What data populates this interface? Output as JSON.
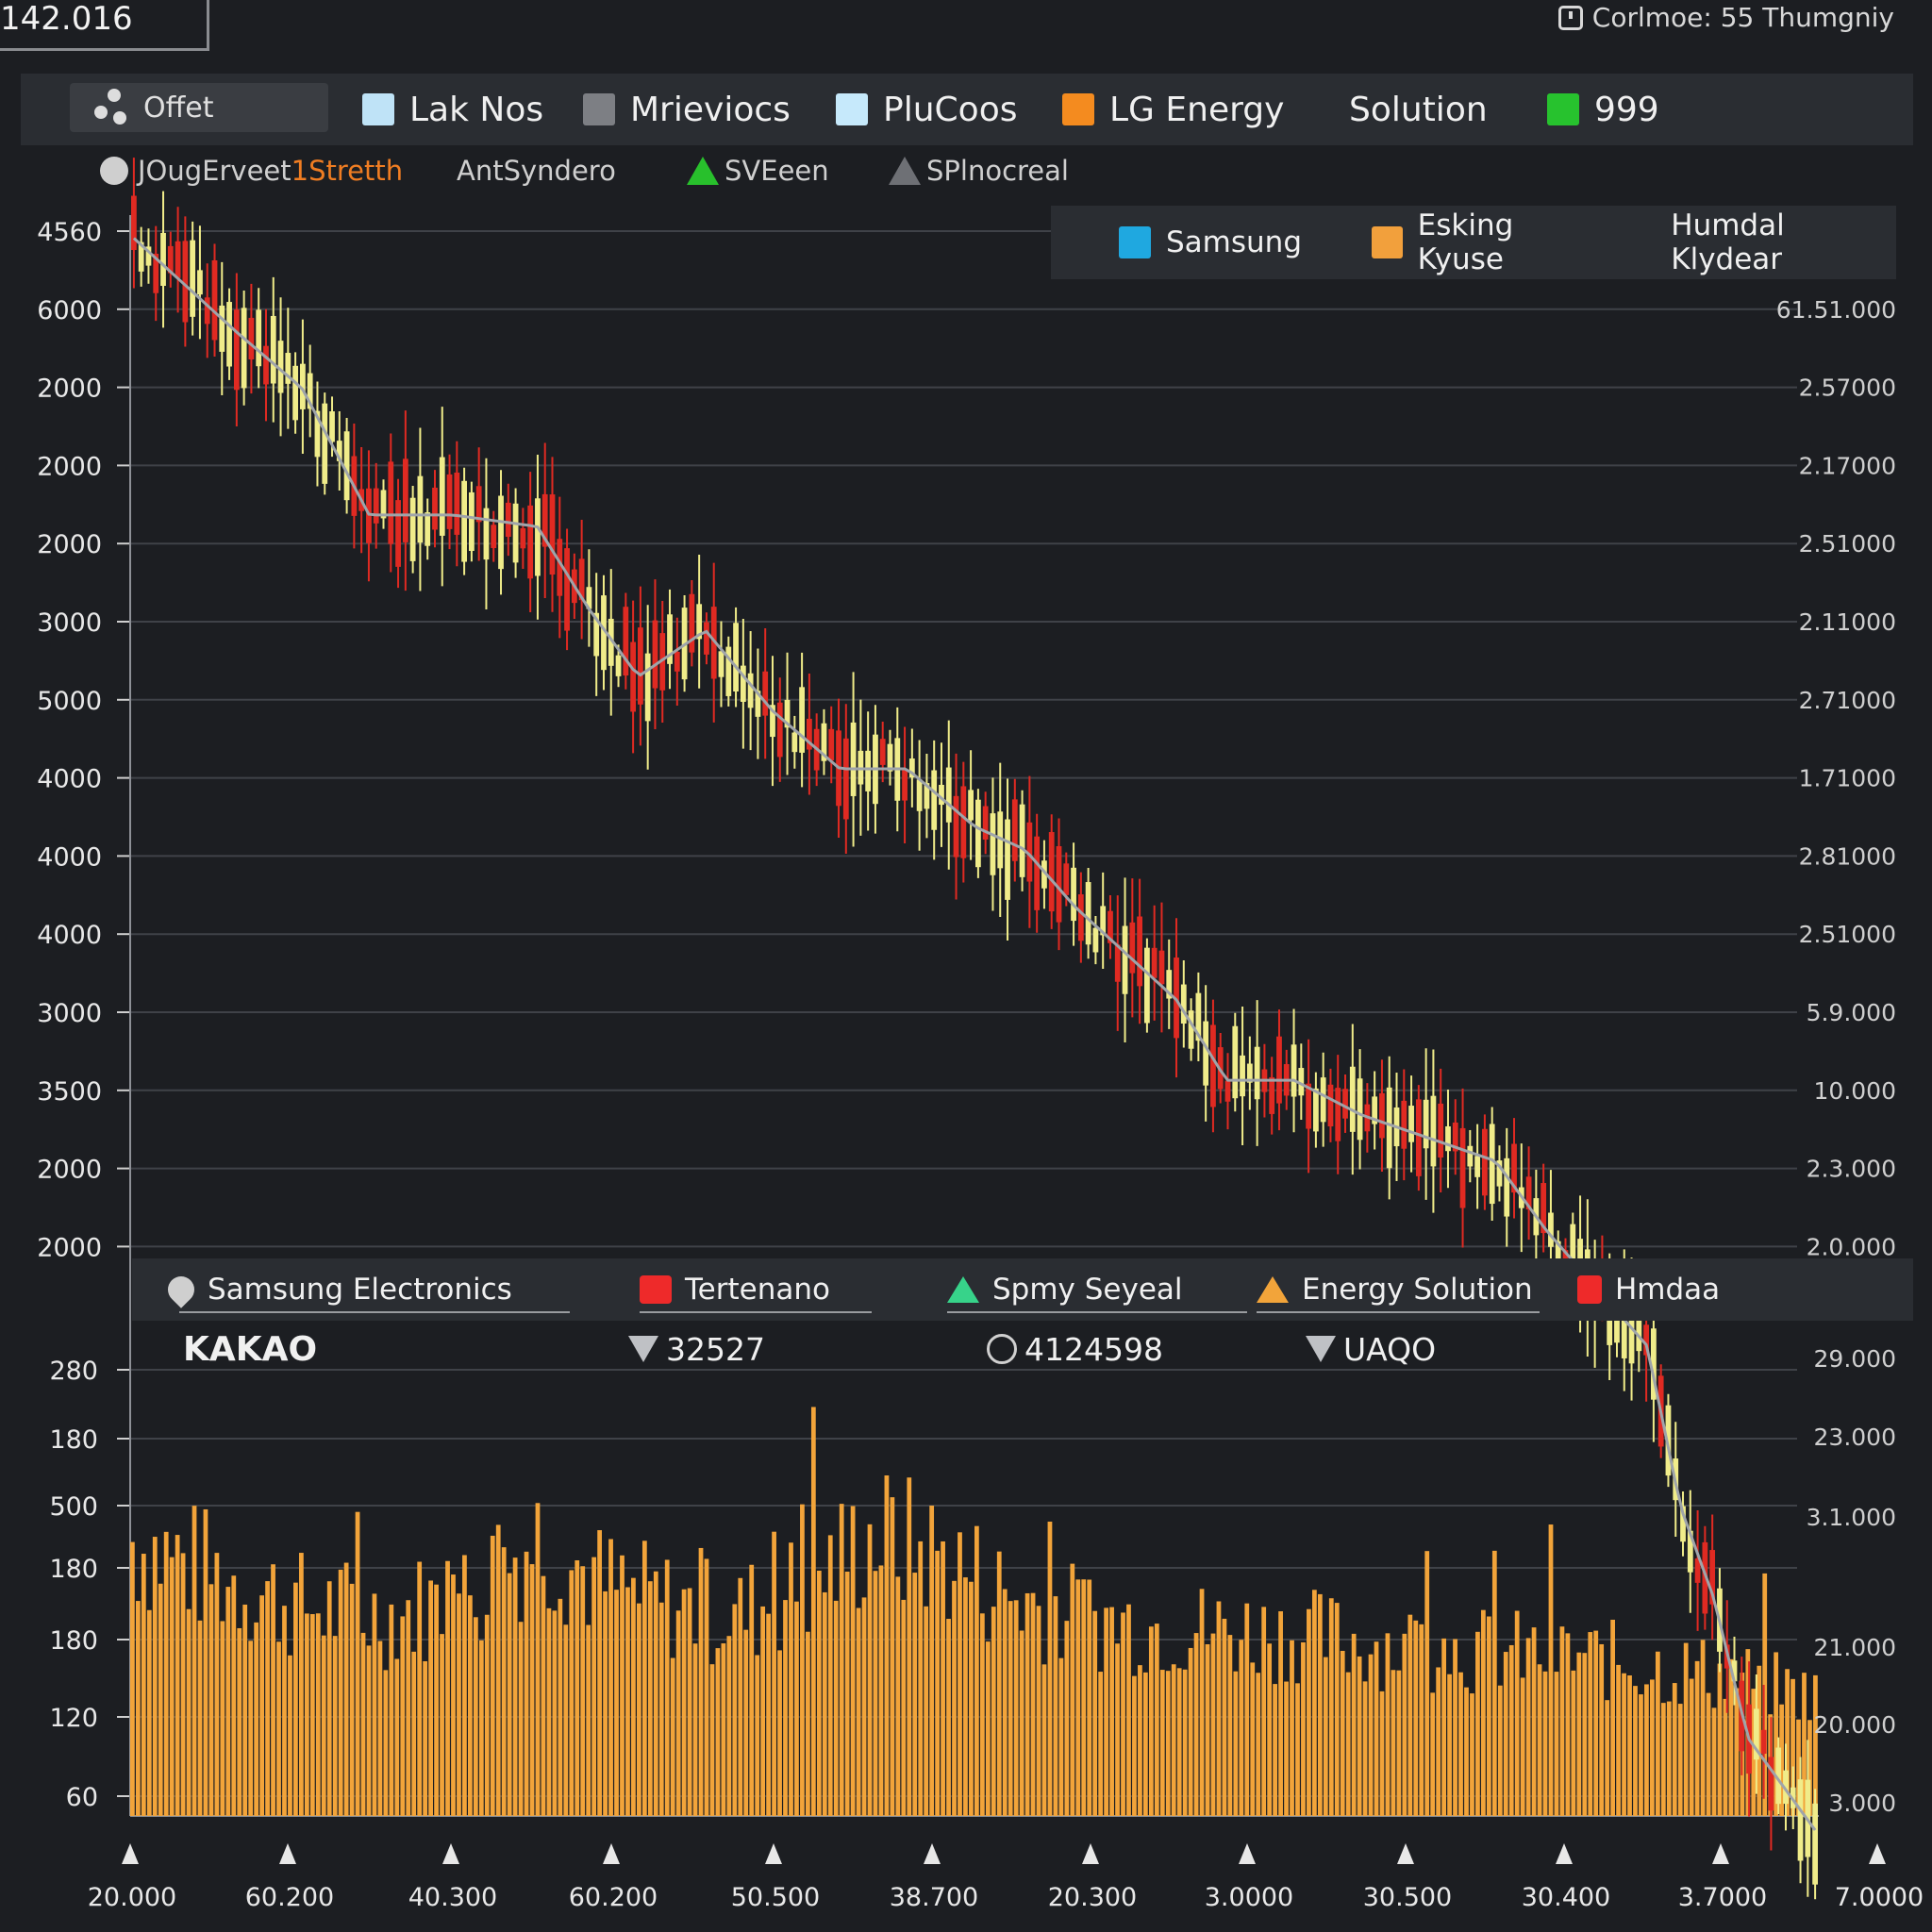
{
  "header": {
    "corner_value": "142.016",
    "right_text": "Corlmoe: 55 Thumgniy"
  },
  "legend": {
    "offset_label": "Offet",
    "items": [
      {
        "label": "Lak Nos",
        "color": "#bfe3f7"
      },
      {
        "label": "Mrieviocs",
        "color": "#7d7f84"
      },
      {
        "label": "PluCoos",
        "color": "#c6e9fb"
      },
      {
        "label": "LG Energy",
        "color": "#f48b1f"
      },
      {
        "label": "Solution",
        "color": ""
      },
      {
        "label": "999",
        "color": "#27c22e"
      }
    ]
  },
  "sub_legend": {
    "item1_a": "JOugErveet",
    "item1_b": "1Stretth",
    "item2": "AntSyndero",
    "item3": "SVEeen",
    "item4": "SPlnocreal"
  },
  "right_legend": {
    "items": [
      {
        "label": "Samsung",
        "color": "#1fa8e0"
      },
      {
        "label": "Esking Kyuse",
        "color": "#f2a03c"
      },
      {
        "label": "Humdal Klydear",
        "color": ""
      }
    ]
  },
  "mid_legend": {
    "items": [
      {
        "label": "Samsung Electronics",
        "color": "#cfcfcf"
      },
      {
        "label": "Tertenano",
        "color": "#ee2a2a"
      },
      {
        "label": "Spmy Seyeal",
        "color": "#37d38a"
      },
      {
        "label": "Energy Solution",
        "color": "#f2a43a"
      },
      {
        "label": "Hmdaa",
        "color": "#ee2a2a"
      }
    ]
  },
  "stats": {
    "title": "KAKAO",
    "value1": "32527",
    "value2": "4124598",
    "value3": "UAQO"
  },
  "colors": {
    "background": "#1c1e22",
    "up_candle": "#f0ec8a",
    "down_candle": "#e02a22",
    "volume": "#f2a43a",
    "moving_average": "#9fa4aa"
  },
  "chart_data": {
    "type": "candlestick-with-volume",
    "y_left_price_labels": [
      "4560",
      "6000",
      "2000",
      "2000",
      "2000",
      "3000",
      "5000",
      "4000",
      "4000",
      "4000",
      "3000",
      "3500",
      "2000",
      "2000"
    ],
    "y_right_price_labels": [
      "61.51.000",
      "2.57000",
      "2.17000",
      "2.51000",
      "2.11000",
      "2.71000",
      "1.71000",
      "2.81000",
      "2.51000",
      "5.9.000",
      "10.000",
      "2.3.000",
      "2.0.000"
    ],
    "y_left_volume_labels": [
      "280",
      "180",
      "500",
      "180",
      "180",
      "120",
      "60"
    ],
    "y_right_volume_labels": [
      "29.000",
      "23.000",
      "3.1.000",
      "21.000",
      "20.000",
      "3.000"
    ],
    "x_labels": [
      "20.000",
      "60.200",
      "40.300",
      "60.200",
      "50.500",
      "38.700",
      "20.300",
      "3.0000",
      "30.500",
      "30.400",
      "3.7000",
      "7.0000"
    ],
    "price_trend": "downward",
    "price_path": [
      [
        0,
        98
      ],
      [
        0.03,
        94
      ],
      [
        0.06,
        90
      ],
      [
        0.1,
        85
      ],
      [
        0.14,
        74
      ],
      [
        0.19,
        74
      ],
      [
        0.24,
        73
      ],
      [
        0.27,
        66
      ],
      [
        0.3,
        60
      ],
      [
        0.34,
        64
      ],
      [
        0.38,
        57
      ],
      [
        0.42,
        52
      ],
      [
        0.46,
        52
      ],
      [
        0.5,
        47
      ],
      [
        0.53,
        45
      ],
      [
        0.56,
        40
      ],
      [
        0.59,
        36
      ],
      [
        0.62,
        32
      ],
      [
        0.65,
        25
      ],
      [
        0.69,
        25
      ],
      [
        0.73,
        22
      ],
      [
        0.77,
        20
      ],
      [
        0.81,
        18
      ],
      [
        0.84,
        12
      ],
      [
        0.87,
        7
      ],
      [
        0.9,
        2
      ],
      [
        0.92,
        -12
      ],
      [
        0.94,
        -20
      ],
      [
        0.96,
        -32
      ],
      [
        1.0,
        -40
      ]
    ],
    "price_path_unit": "relative price index (100 = first candle)",
    "volume_profile": [
      [
        0,
        55
      ],
      [
        0.05,
        48
      ],
      [
        0.1,
        42
      ],
      [
        0.15,
        40
      ],
      [
        0.2,
        44
      ],
      [
        0.24,
        56
      ],
      [
        0.28,
        46
      ],
      [
        0.32,
        42
      ],
      [
        0.36,
        40
      ],
      [
        0.4,
        46
      ],
      [
        0.44,
        56
      ],
      [
        0.48,
        52
      ],
      [
        0.52,
        44
      ],
      [
        0.56,
        40
      ],
      [
        0.6,
        38
      ],
      [
        0.65,
        37
      ],
      [
        0.7,
        36
      ],
      [
        0.75,
        34
      ],
      [
        0.8,
        33
      ],
      [
        0.85,
        32
      ],
      [
        0.9,
        30
      ],
      [
        0.95,
        28
      ],
      [
        1.0,
        24
      ]
    ],
    "volume_profile_unit": "relative volume (0-100)",
    "grid": true
  }
}
